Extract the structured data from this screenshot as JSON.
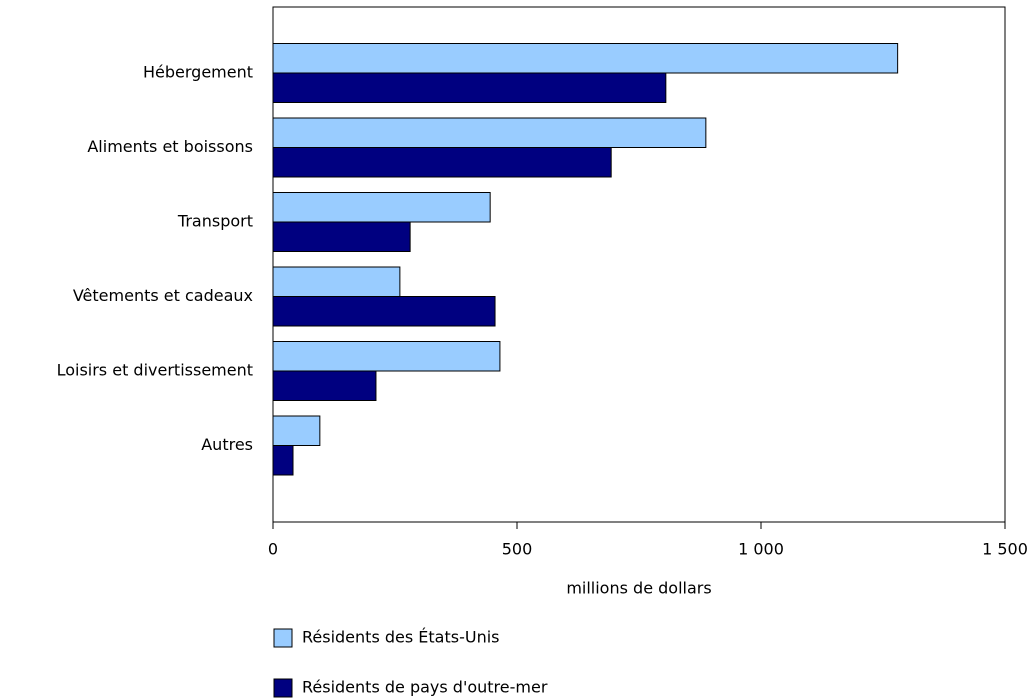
{
  "chart_data": {
    "type": "barh",
    "categories": [
      "Hébergement",
      "Aliments et boissons",
      "Transport",
      "Vêtements et cadeaux",
      "Loisirs et divertissement",
      "Autres"
    ],
    "series": [
      {
        "name": "Résidents des États-Unis",
        "color": "#99ccff",
        "values": [
          1280,
          887,
          445,
          260,
          465,
          96
        ]
      },
      {
        "name": "Résidents de pays d'outre-mer",
        "color": "#000080",
        "values": [
          805,
          693,
          281,
          455,
          211,
          41
        ]
      }
    ],
    "xlabel": "millions de dollars",
    "xlim": [
      0,
      1500
    ],
    "xticks": [
      0,
      500,
      {
        "value": 1000,
        "label": "1 000"
      },
      {
        "value": 1500,
        "label": "1 500"
      }
    ],
    "grid": false
  }
}
